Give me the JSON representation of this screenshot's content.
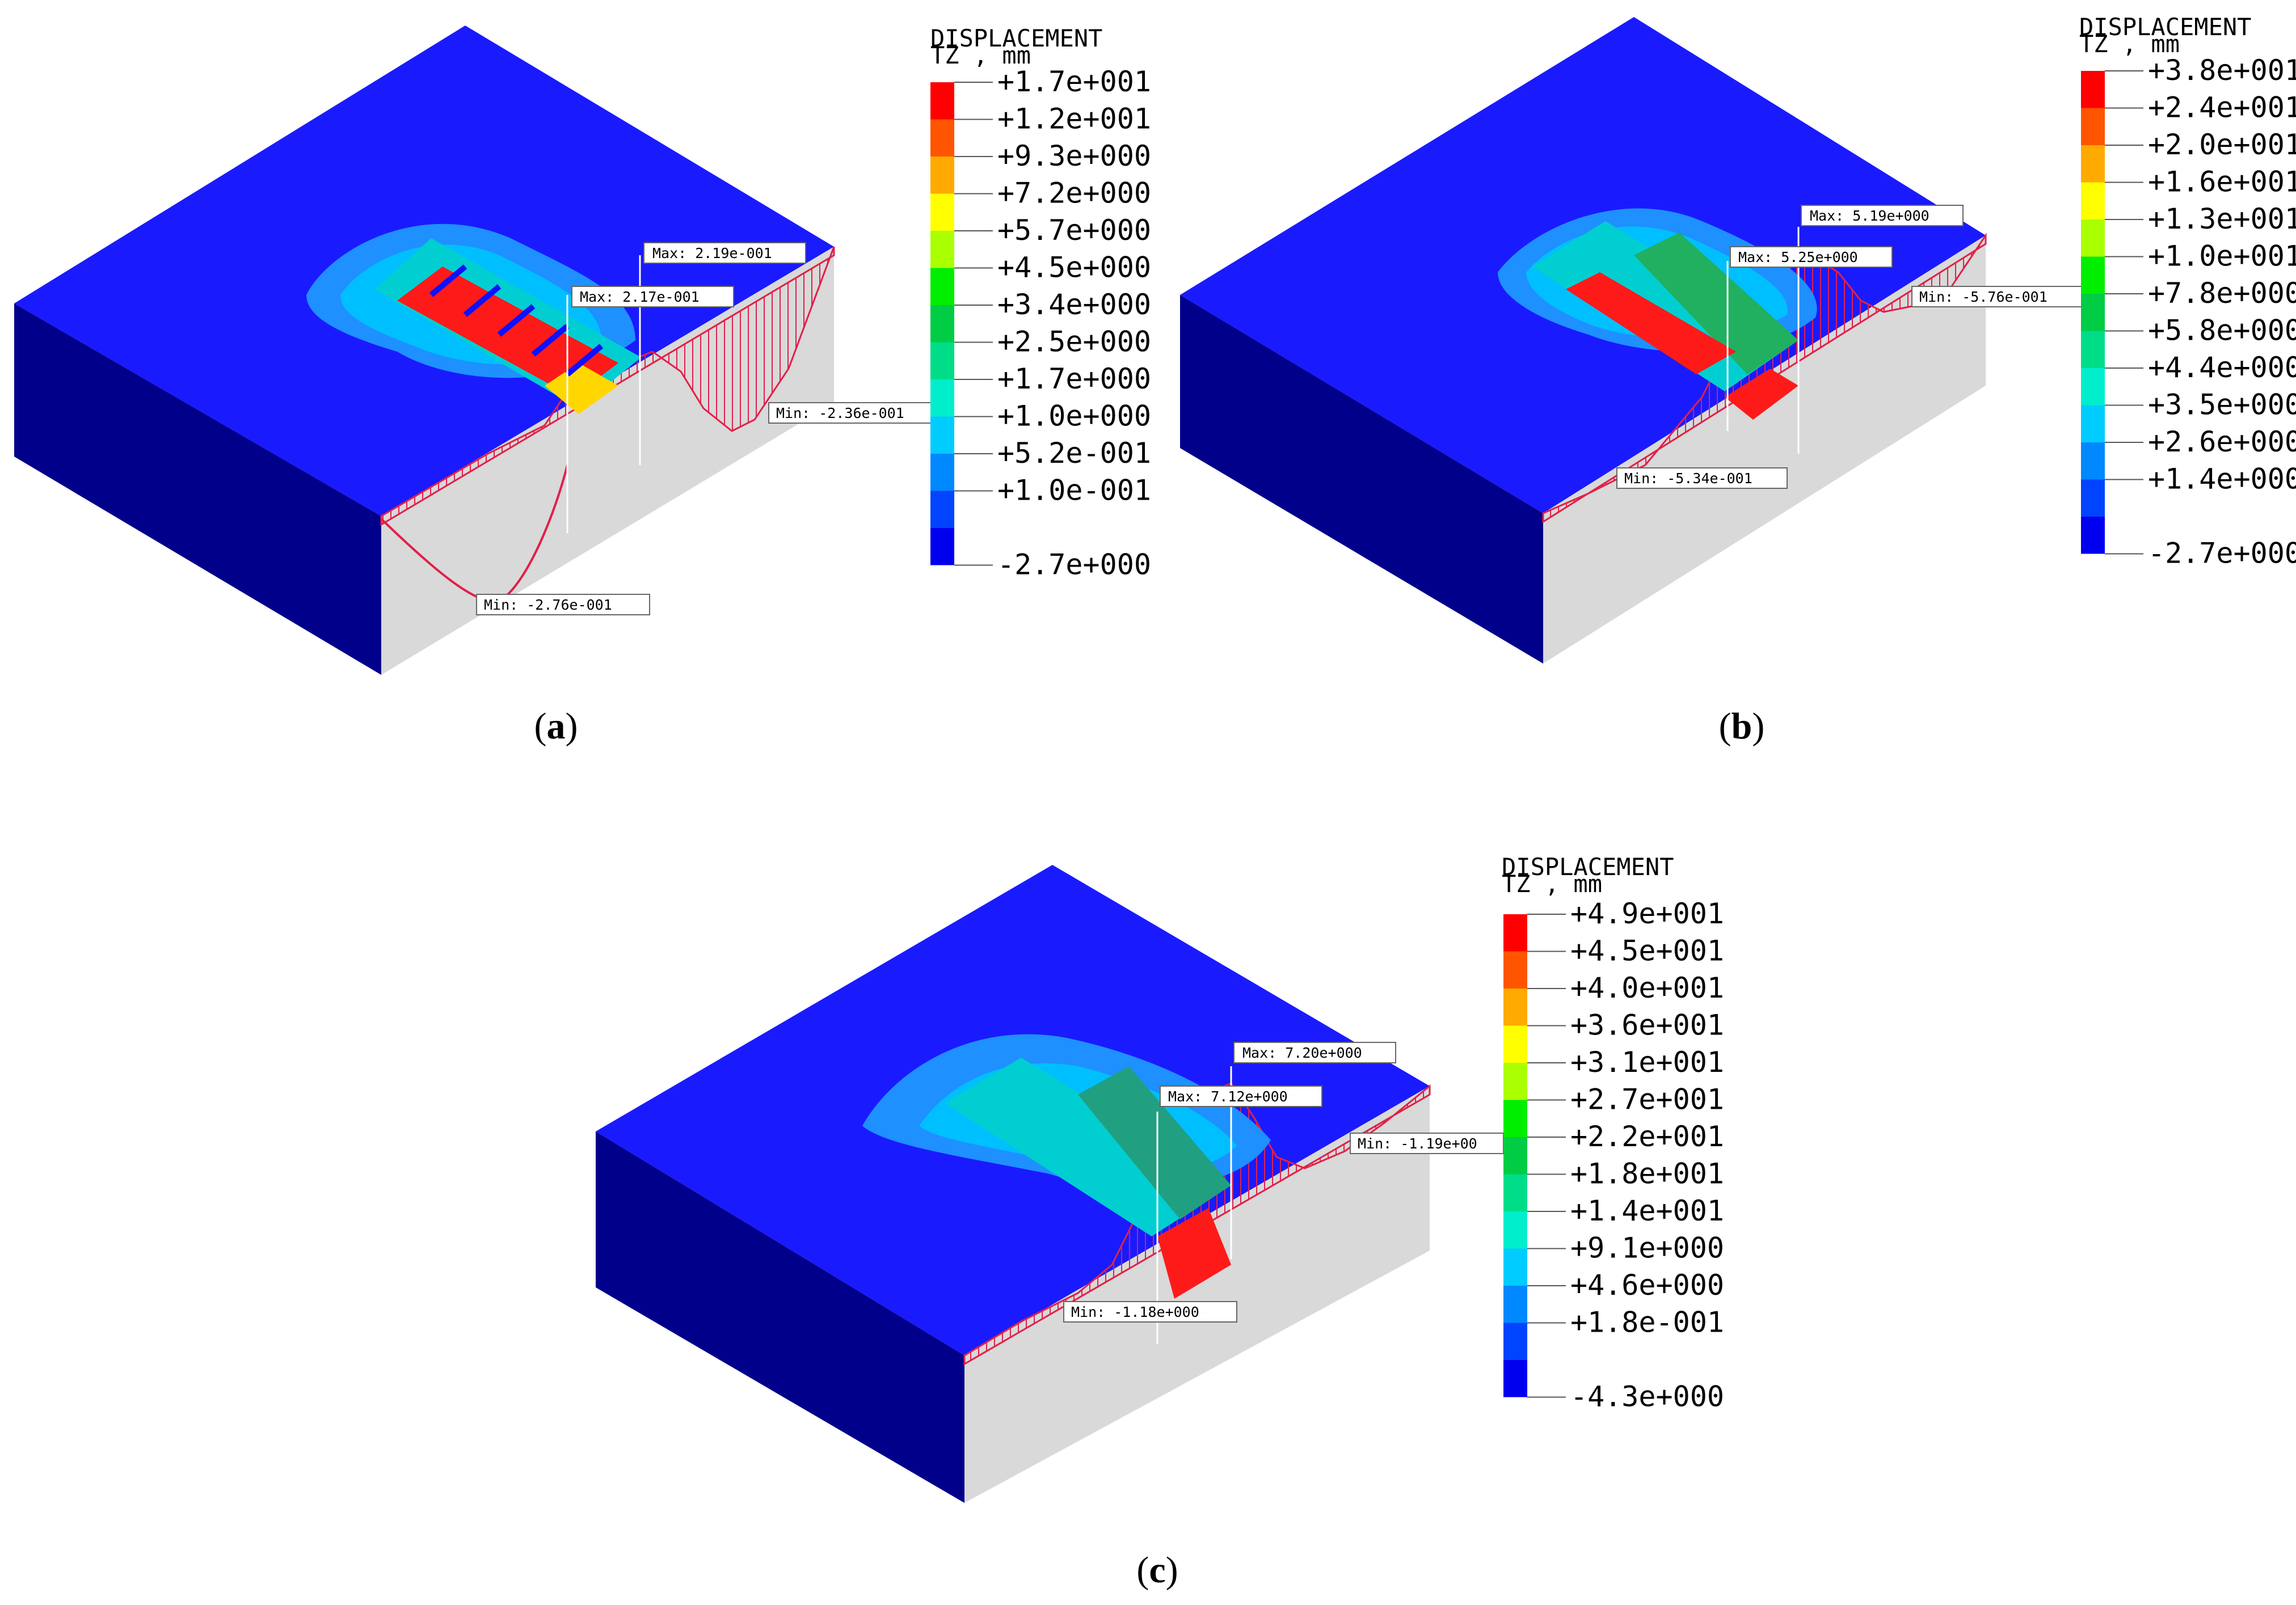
{
  "figure": {
    "panels": [
      {
        "id": "a",
        "caption_open": "(",
        "caption_letter": "a",
        "caption_close": ")",
        "legend_title_1": "DISPLACEMENT",
        "legend_title_2": "TZ , mm",
        "legend_values": [
          "+1.7e+001",
          "+1.2e+001",
          "+9.3e+000",
          "+7.2e+000",
          "+5.7e+000",
          "+4.5e+000",
          "+3.4e+000",
          "+2.5e+000",
          "+1.7e+000",
          "+1.0e+000",
          "+5.2e-001",
          "+1.0e-001",
          "-2.7e+000"
        ],
        "tags": [
          "Max: 2.19e-001",
          "Max: 2.17e-001",
          "Min: -2.36e-001",
          "Min: -2.76e-001"
        ]
      },
      {
        "id": "b",
        "caption_open": "(",
        "caption_letter": "b",
        "caption_close": ")",
        "legend_title_1": "DISPLACEMENT",
        "legend_title_2": "TZ , mm",
        "legend_values": [
          "+3.8e+001",
          "+2.4e+001",
          "+2.0e+001",
          "+1.6e+001",
          "+1.3e+001",
          "+1.0e+001",
          "+7.8e+000",
          "+5.8e+000",
          "+4.4e+000",
          "+3.5e+000",
          "+2.6e+000",
          "+1.4e+000",
          "-2.7e+000"
        ],
        "tags": [
          "Max: 5.19e+000",
          "Max: 5.25e+000",
          "Min: -5.76e-001",
          "Min: -5.34e-001"
        ]
      },
      {
        "id": "c",
        "caption_open": "(",
        "caption_letter": "c",
        "caption_close": ")",
        "legend_title_1": "DISPLACEMENT",
        "legend_title_2": "TZ , mm",
        "legend_values": [
          "+4.9e+001",
          "+4.5e+001",
          "+4.0e+001",
          "+3.6e+001",
          "+3.1e+001",
          "+2.7e+001",
          "+2.2e+001",
          "+1.8e+001",
          "+1.4e+001",
          "+9.1e+000",
          "+4.6e+000",
          "+1.8e-001",
          "-4.3e+000"
        ],
        "tags": [
          "Max: 7.20e+000",
          "Max: 7.12e+000",
          "Min: -1.19e+00",
          "Min: -1.18e+000"
        ]
      }
    ],
    "colors": {
      "contour": [
        "#ff0000",
        "#ff5500",
        "#ffaa00",
        "#ffff00",
        "#aaff00",
        "#00ee00",
        "#00cc44",
        "#00dd88",
        "#00eecc",
        "#00ccff",
        "#0088ff",
        "#0044ff",
        "#0000ee"
      ],
      "soil_top": "#1a1aff",
      "soil_left": "#00008b",
      "soil_front": "#0000cd",
      "cut_face": "#d9d9d9",
      "profile_line": "#e0204a"
    }
  }
}
